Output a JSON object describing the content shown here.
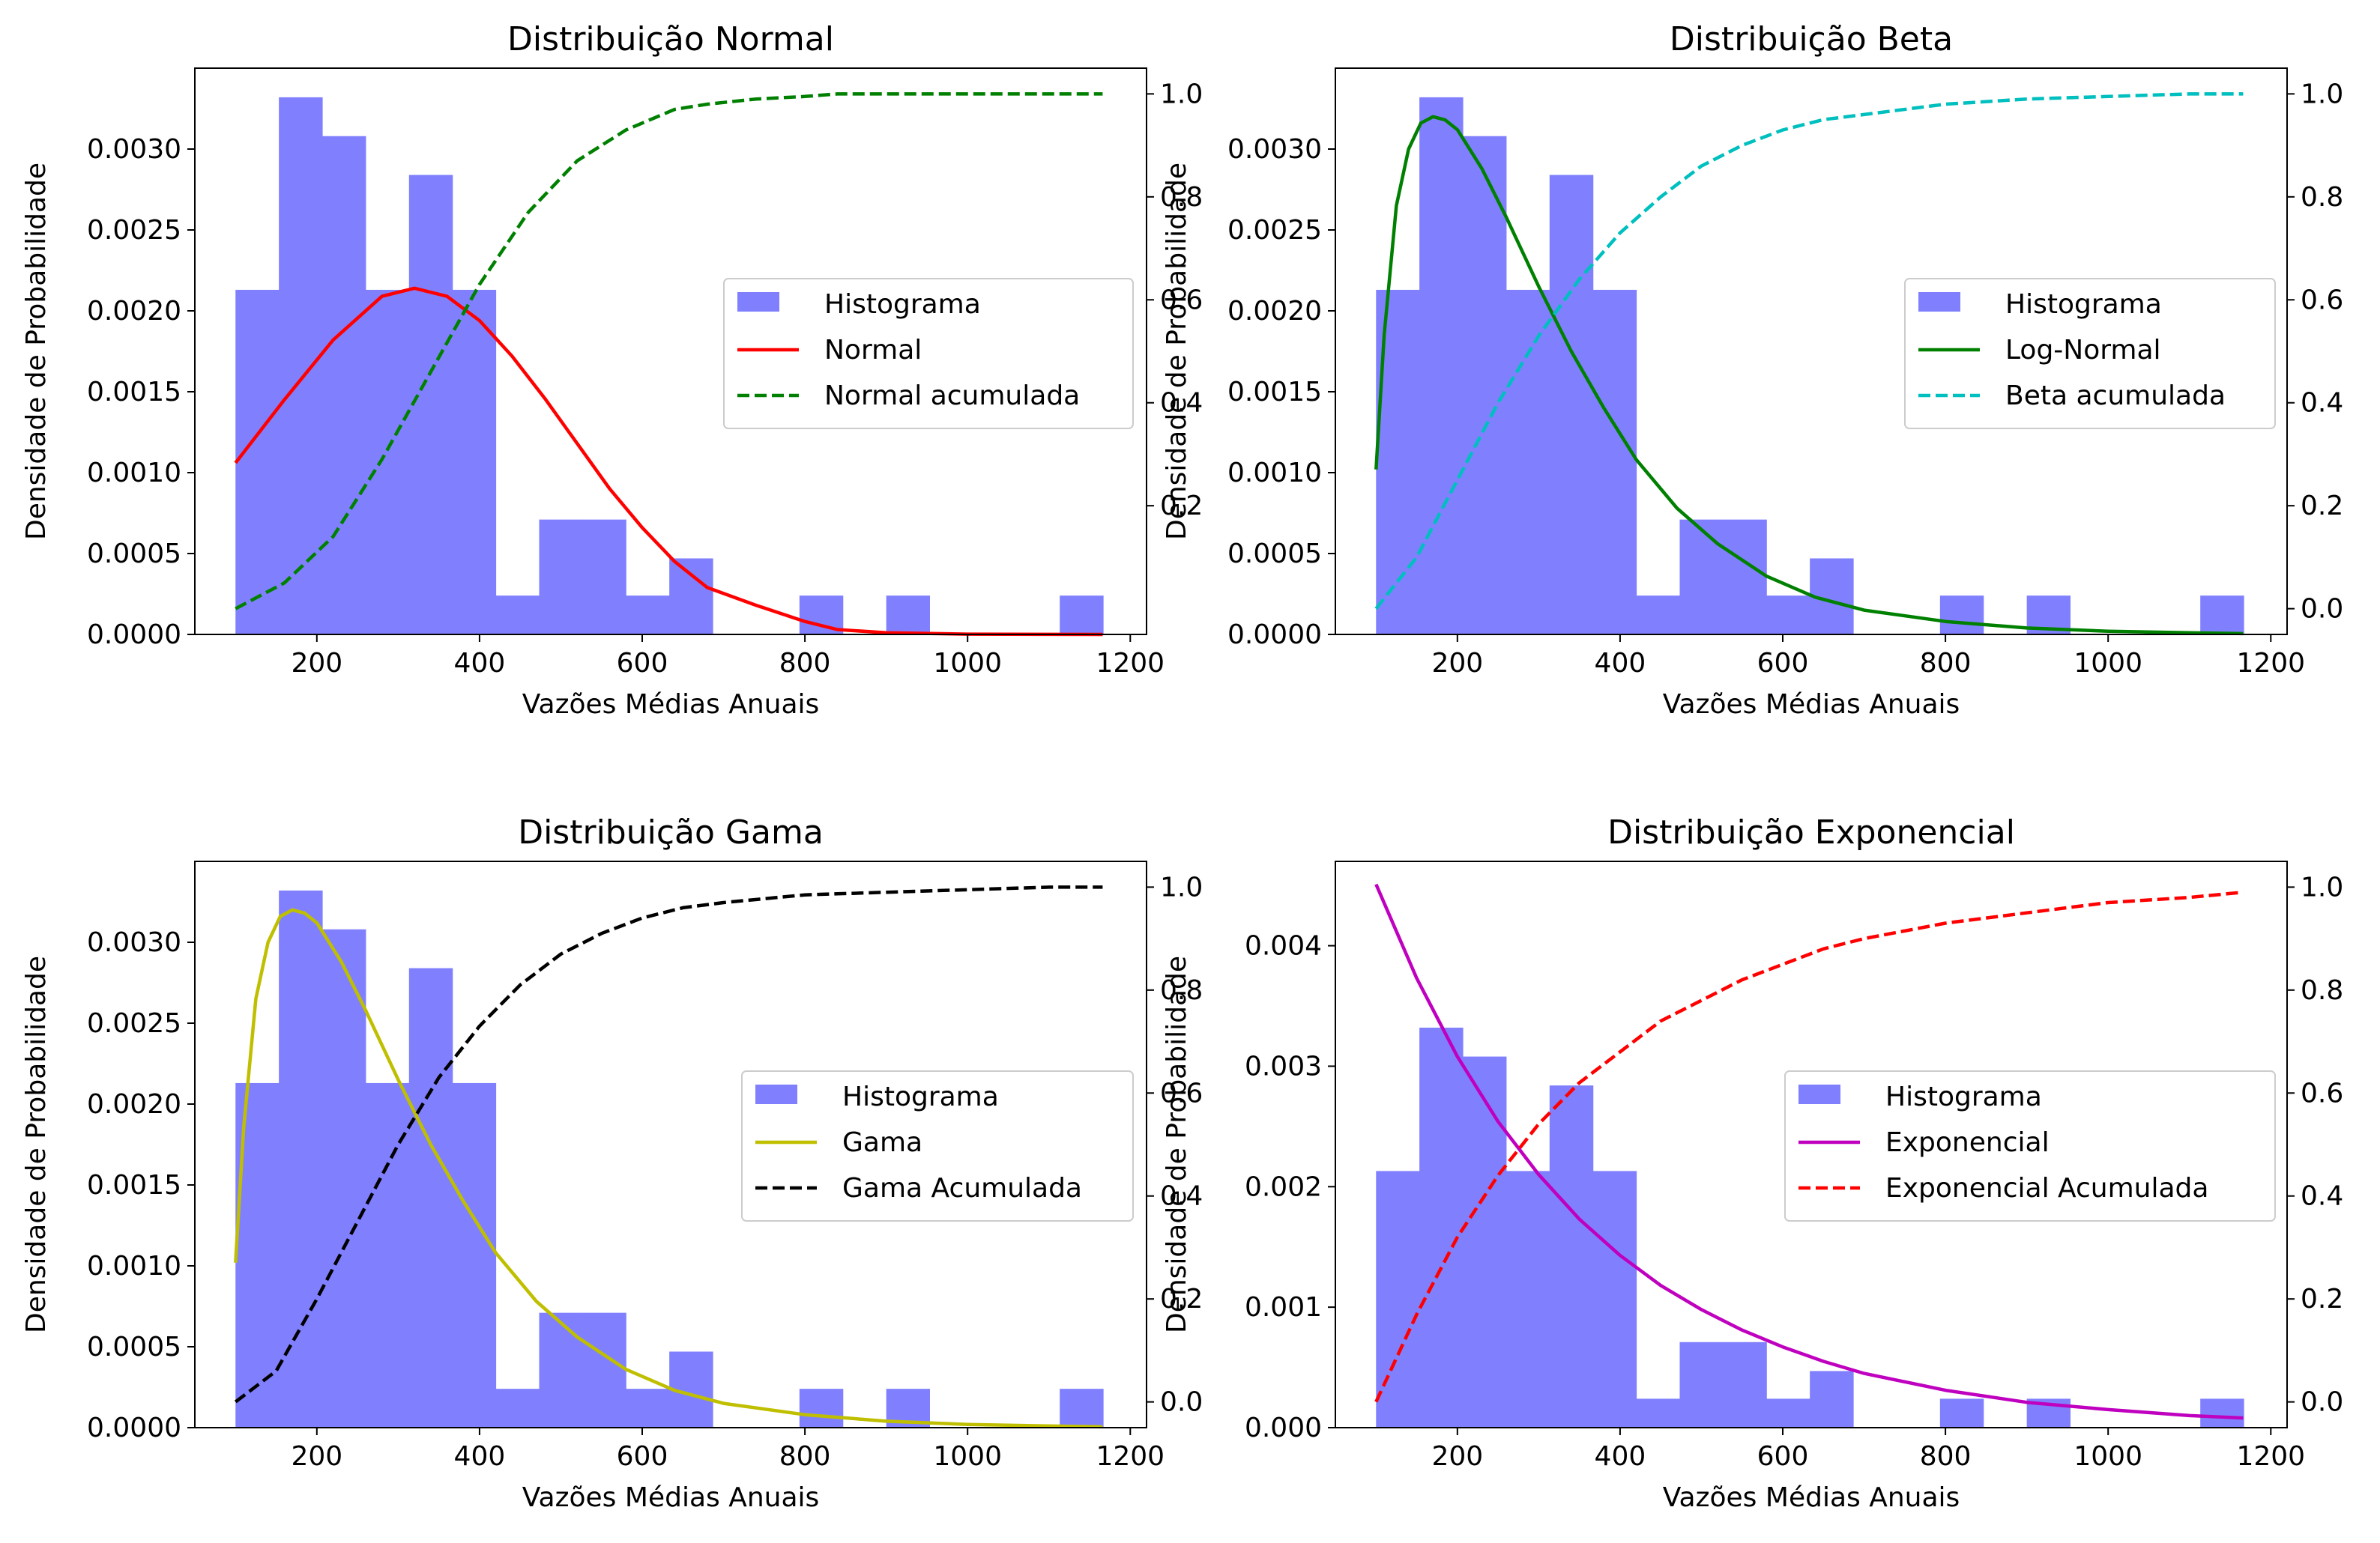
{
  "chart_data": [
    {
      "type": "bar",
      "title": "Distribuição Normal",
      "xlabel": "Vazões Médias Anuais",
      "ylabel": "Densidade de Probabilidade",
      "y2label": "",
      "xlim": [
        50,
        1220
      ],
      "xticks": [
        200,
        400,
        600,
        800,
        1000,
        1200
      ],
      "ylim": [
        0,
        0.0035
      ],
      "yticks": [
        "0.0000",
        "0.0005",
        "0.0010",
        "0.0015",
        "0.0020",
        "0.0025",
        "0.0030"
      ],
      "y2lim": [
        -0.05,
        1.05
      ],
      "y2ticks": [
        "0.2",
        "0.4",
        "0.6",
        "0.8",
        "1.0"
      ],
      "histogram": {
        "name": "Histograma",
        "color": "#8080ff",
        "bin_edges": [
          100,
          153.3,
          206.7,
          260,
          313.3,
          366.7,
          420,
          473.3,
          526.7,
          580,
          633.3,
          686.7,
          740,
          793.3,
          846.7,
          900,
          953.3,
          1006.7,
          1060,
          1113.3,
          1166.7
        ],
        "values": [
          0.00213,
          0.00332,
          0.00308,
          0.00213,
          0.00284,
          0.00213,
          0.00024,
          0.00071,
          0.00071,
          0.00024,
          0.00047,
          0,
          0,
          0.00024,
          0,
          0.00024,
          0,
          0,
          0,
          0.00024
        ]
      },
      "series": [
        {
          "name": "Normal",
          "axis": "left",
          "color": "#ff0000",
          "dash": "",
          "x": [
            100,
            160,
            220,
            280,
            320,
            360,
            400,
            440,
            480,
            520,
            560,
            600,
            640,
            680,
            740,
            800,
            840,
            900,
            1000,
            1100,
            1166
          ],
          "y": [
            0.00106,
            0.00145,
            0.00182,
            0.00209,
            0.00214,
            0.00209,
            0.00194,
            0.00172,
            0.00146,
            0.00118,
            0.0009,
            0.00066,
            0.00045,
            0.00029,
            0.00018,
            8e-05,
            3e-05,
            1e-05,
            2e-06,
            3e-07,
            0
          ]
        },
        {
          "name": "Normal acumulada",
          "axis": "right",
          "color": "#008000",
          "dash": "16 7",
          "x": [
            100,
            160,
            220,
            280,
            340,
            400,
            460,
            520,
            580,
            640,
            680,
            740,
            800,
            840,
            900,
            1000,
            1100,
            1166
          ],
          "y": [
            0.0,
            0.05,
            0.14,
            0.29,
            0.46,
            0.63,
            0.77,
            0.87,
            0.93,
            0.97,
            0.98,
            0.99,
            0.995,
            1.0,
            1.0,
            1.0,
            1.0,
            1.0
          ]
        }
      ]
    },
    {
      "type": "bar",
      "title": "Distribuição Beta",
      "xlabel": "Vazões Médias Anuais",
      "ylabel": "Densidade de Probabilidade",
      "y2label": "",
      "xlim": [
        50,
        1220
      ],
      "xticks": [
        200,
        400,
        600,
        800,
        1000,
        1200
      ],
      "ylim": [
        0,
        0.0035
      ],
      "yticks": [
        "0.0000",
        "0.0005",
        "0.0010",
        "0.0015",
        "0.0020",
        "0.0025",
        "0.0030"
      ],
      "y2lim": [
        -0.05,
        1.05
      ],
      "y2ticks": [
        "0.0",
        "0.2",
        "0.4",
        "0.6",
        "0.8",
        "1.0"
      ],
      "histogram": {
        "name": "Histograma",
        "color": "#8080ff",
        "bin_edges": [
          100,
          153.3,
          206.7,
          260,
          313.3,
          366.7,
          420,
          473.3,
          526.7,
          580,
          633.3,
          686.7,
          740,
          793.3,
          846.7,
          900,
          953.3,
          1006.7,
          1060,
          1113.3,
          1166.7
        ],
        "values": [
          0.00213,
          0.00332,
          0.00308,
          0.00213,
          0.00284,
          0.00213,
          0.00024,
          0.00071,
          0.00071,
          0.00024,
          0.00047,
          0,
          0,
          0.00024,
          0,
          0.00024,
          0,
          0,
          0,
          0.00024
        ]
      },
      "series": [
        {
          "name": "Log-Normal",
          "axis": "left",
          "color": "#008000",
          "dash": "",
          "x": [
            100,
            110,
            125,
            140,
            155,
            170,
            185,
            200,
            230,
            260,
            300,
            340,
            380,
            420,
            470,
            520,
            580,
            640,
            700,
            800,
            900,
            1000,
            1100,
            1166
          ],
          "y": [
            0.00102,
            0.00185,
            0.00265,
            0.003,
            0.00316,
            0.0032,
            0.00318,
            0.00312,
            0.00288,
            0.00258,
            0.00215,
            0.00175,
            0.0014,
            0.00108,
            0.00078,
            0.00056,
            0.00036,
            0.00023,
            0.00015,
            8e-05,
            4e-05,
            2e-05,
            1e-05,
            5e-06
          ]
        },
        {
          "name": "Beta acumulada",
          "axis": "right",
          "color": "#00bfbf",
          "dash": "16 7",
          "x": [
            100,
            150,
            200,
            250,
            300,
            350,
            400,
            450,
            500,
            550,
            600,
            650,
            700,
            800,
            900,
            1000,
            1100,
            1166
          ],
          "y": [
            0.0,
            0.1,
            0.25,
            0.4,
            0.53,
            0.64,
            0.73,
            0.8,
            0.86,
            0.9,
            0.93,
            0.95,
            0.96,
            0.98,
            0.99,
            0.995,
            1.0,
            1.0
          ]
        }
      ]
    },
    {
      "type": "bar",
      "title": "Distribuição Gama",
      "xlabel": "Vazões Médias Anuais",
      "ylabel": "Densidade de Probabilidade",
      "y2label": "",
      "xlim": [
        50,
        1220
      ],
      "xticks": [
        200,
        400,
        600,
        800,
        1000,
        1200
      ],
      "ylim": [
        0,
        0.0035
      ],
      "yticks": [
        "0.0000",
        "0.0005",
        "0.0010",
        "0.0015",
        "0.0020",
        "0.0025",
        "0.0030"
      ],
      "y2lim": [
        -0.05,
        1.05
      ],
      "y2ticks": [
        "0.0",
        "0.2",
        "0.4",
        "0.6",
        "0.8",
        "1.0"
      ],
      "histogram": {
        "name": "Histograma",
        "color": "#8080ff",
        "bin_edges": [
          100,
          153.3,
          206.7,
          260,
          313.3,
          366.7,
          420,
          473.3,
          526.7,
          580,
          633.3,
          686.7,
          740,
          793.3,
          846.7,
          900,
          953.3,
          1006.7,
          1060,
          1113.3,
          1166.7
        ],
        "values": [
          0.00213,
          0.00332,
          0.00308,
          0.00213,
          0.00284,
          0.00213,
          0.00024,
          0.00071,
          0.00071,
          0.00024,
          0.00047,
          0,
          0,
          0.00024,
          0,
          0.00024,
          0,
          0,
          0,
          0.00024
        ]
      },
      "series": [
        {
          "name": "Gama",
          "axis": "left",
          "color": "#bfbf00",
          "dash": "",
          "x": [
            100,
            110,
            125,
            140,
            155,
            170,
            185,
            200,
            230,
            260,
            300,
            340,
            380,
            420,
            470,
            520,
            580,
            640,
            700,
            800,
            900,
            1000,
            1100,
            1166
          ],
          "y": [
            0.00102,
            0.00185,
            0.00265,
            0.003,
            0.00316,
            0.0032,
            0.00318,
            0.00312,
            0.00288,
            0.00258,
            0.00215,
            0.00175,
            0.0014,
            0.00108,
            0.00078,
            0.00056,
            0.00036,
            0.00023,
            0.00015,
            8e-05,
            4e-05,
            2e-05,
            1e-05,
            5e-06
          ]
        },
        {
          "name": "Gama Acumulada",
          "axis": "right",
          "color": "#000000",
          "dash": "16 7",
          "x": [
            100,
            150,
            200,
            250,
            300,
            350,
            400,
            450,
            500,
            550,
            600,
            650,
            700,
            800,
            900,
            1000,
            1100,
            1166
          ],
          "y": [
            0.0,
            0.06,
            0.2,
            0.35,
            0.5,
            0.63,
            0.73,
            0.81,
            0.87,
            0.91,
            0.94,
            0.96,
            0.97,
            0.985,
            0.99,
            0.995,
            1.0,
            1.0
          ]
        }
      ]
    },
    {
      "type": "bar",
      "title": "Distribuição Exponencial",
      "xlabel": "Vazões Médias Anuais",
      "ylabel": "Densidade de Probabilidade",
      "y2label": "",
      "xlim": [
        50,
        1220
      ],
      "xticks": [
        200,
        400,
        600,
        800,
        1000,
        1200
      ],
      "ylim": [
        0,
        0.0047
      ],
      "yticks": [
        "0.000",
        "0.001",
        "0.002",
        "0.003",
        "0.004"
      ],
      "y2lim": [
        -0.05,
        1.05
      ],
      "y2ticks": [
        "0.0",
        "0.2",
        "0.4",
        "0.6",
        "0.8",
        "1.0"
      ],
      "histogram": {
        "name": "Histograma",
        "color": "#8080ff",
        "bin_edges": [
          100,
          153.3,
          206.7,
          260,
          313.3,
          366.7,
          420,
          473.3,
          526.7,
          580,
          633.3,
          686.7,
          740,
          793.3,
          846.7,
          900,
          953.3,
          1006.7,
          1060,
          1113.3,
          1166.7
        ],
        "values": [
          0.00213,
          0.00332,
          0.00308,
          0.00213,
          0.00284,
          0.00213,
          0.00024,
          0.00071,
          0.00071,
          0.00024,
          0.00047,
          0,
          0,
          0.00024,
          0,
          0.00024,
          0,
          0,
          0,
          0.00024
        ]
      },
      "series": [
        {
          "name": "Exponencial",
          "axis": "left",
          "color": "#bf00bf",
          "dash": "",
          "x": [
            100,
            150,
            200,
            250,
            300,
            350,
            400,
            450,
            500,
            550,
            600,
            650,
            700,
            800,
            900,
            1000,
            1100,
            1166
          ],
          "y": [
            0.00451,
            0.00373,
            0.00308,
            0.00254,
            0.0021,
            0.00173,
            0.00143,
            0.00118,
            0.00098,
            0.00081,
            0.00067,
            0.00055,
            0.00045,
            0.00031,
            0.00021,
            0.00015,
            0.0001,
            8e-05
          ]
        },
        {
          "name": "Exponencial Acumulada",
          "axis": "right",
          "color": "#ff0000",
          "dash": "16 7",
          "x": [
            100,
            150,
            200,
            250,
            300,
            350,
            400,
            450,
            500,
            550,
            600,
            650,
            700,
            800,
            900,
            1000,
            1100,
            1166
          ],
          "y": [
            0.0,
            0.17,
            0.32,
            0.44,
            0.54,
            0.62,
            0.68,
            0.74,
            0.78,
            0.82,
            0.85,
            0.88,
            0.9,
            0.93,
            0.95,
            0.97,
            0.98,
            0.99
          ]
        }
      ]
    }
  ]
}
